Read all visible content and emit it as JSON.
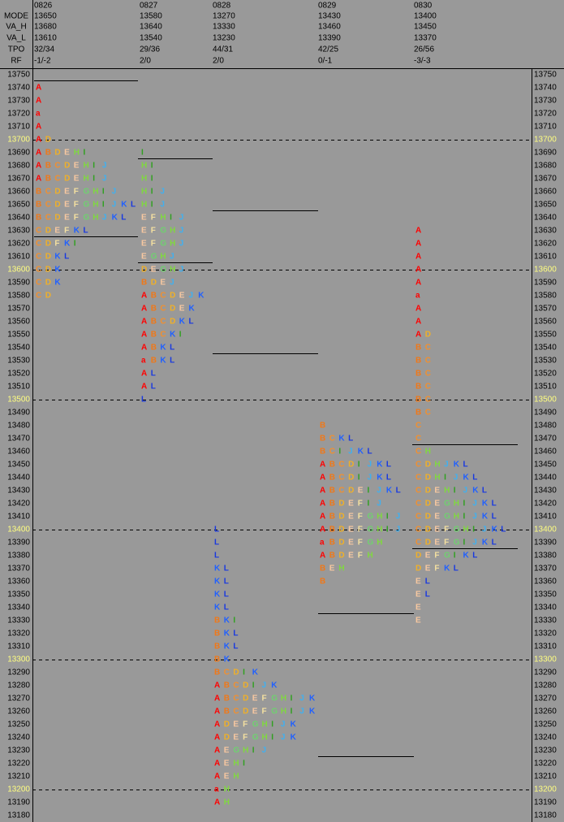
{
  "chart_data": {
    "type": "market-profile",
    "row_labels": [
      "MODE",
      "VA_H",
      "VA_L",
      "TPO",
      "RF"
    ],
    "prices": [
      13750,
      13740,
      13730,
      13720,
      13710,
      13700,
      13690,
      13680,
      13670,
      13660,
      13650,
      13640,
      13630,
      13620,
      13610,
      13600,
      13590,
      13580,
      13570,
      13560,
      13550,
      13540,
      13530,
      13520,
      13510,
      13500,
      13490,
      13480,
      13470,
      13460,
      13450,
      13440,
      13430,
      13420,
      13410,
      13400,
      13390,
      13380,
      13370,
      13360,
      13350,
      13340,
      13330,
      13320,
      13310,
      13300,
      13290,
      13280,
      13270,
      13260,
      13250,
      13240,
      13230,
      13220,
      13210,
      13200,
      13190,
      13180
    ],
    "grid_prices": [
      13700,
      13600,
      13500,
      13400,
      13300,
      13200
    ],
    "letter_colors": {
      "A": "#ff0000",
      "a": "#ff0000",
      "B": "#f07818",
      "C": "#f09030",
      "D": "#f0b028",
      "E": "#f8c8a0",
      "F": "#f4e0a0",
      "G": "#70d070",
      "H": "#80d840",
      "I": "#30a020",
      "J": "#40b0f0",
      "K": "#2060ff",
      "L": "#1838e0"
    },
    "sessions": [
      {
        "date": "0826",
        "values": [
          13650,
          13680,
          13610,
          "32/34",
          "-1/-2"
        ],
        "profile": [
          {
            "price": 13740,
            "letters": [
              "A"
            ]
          },
          {
            "price": 13730,
            "letters": [
              "A"
            ]
          },
          {
            "price": 13720,
            "letters": [
              "a"
            ]
          },
          {
            "price": 13710,
            "letters": [
              "A"
            ]
          },
          {
            "price": 13700,
            "letters": [
              "A",
              "D"
            ]
          },
          {
            "price": 13690,
            "letters": [
              "A",
              "B",
              "D",
              "E",
              "H",
              "I"
            ]
          },
          {
            "price": 13680,
            "letters": [
              "A",
              "B",
              "C",
              "D",
              "E",
              "H",
              "I",
              "J"
            ]
          },
          {
            "price": 13670,
            "letters": [
              "A",
              "B",
              "C",
              "D",
              "E",
              "H",
              "I",
              "J"
            ]
          },
          {
            "price": 13660,
            "letters": [
              "B",
              "C",
              "D",
              "E",
              "F",
              "G",
              "H",
              "I",
              "J"
            ]
          },
          {
            "price": 13650,
            "letters": [
              "B",
              "C",
              "D",
              "E",
              "F",
              "G",
              "H",
              "I",
              "J",
              "K",
              "L"
            ]
          },
          {
            "price": 13640,
            "letters": [
              "B",
              "C",
              "D",
              "E",
              "F",
              "G",
              "H",
              "J",
              "K",
              "L"
            ]
          },
          {
            "price": 13630,
            "letters": [
              "C",
              "D",
              "E",
              "F",
              "K",
              "L"
            ]
          },
          {
            "price": 13620,
            "letters": [
              "C",
              "D",
              "F",
              "K",
              "I"
            ]
          },
          {
            "price": 13610,
            "letters": [
              "C",
              "D",
              "K",
              "L"
            ]
          },
          {
            "price": 13600,
            "letters": [
              "C",
              "D",
              "K"
            ]
          },
          {
            "price": 13590,
            "letters": [
              "C",
              "D",
              "K"
            ]
          },
          {
            "price": 13580,
            "letters": [
              "C",
              "D"
            ]
          }
        ]
      },
      {
        "date": "0827",
        "values": [
          13580,
          13640,
          13540,
          "29/36",
          "2/0"
        ],
        "profile": [
          {
            "price": 13690,
            "letters": [
              "I"
            ]
          },
          {
            "price": 13680,
            "letters": [
              "H",
              "I"
            ]
          },
          {
            "price": 13670,
            "letters": [
              "H",
              "I"
            ]
          },
          {
            "price": 13660,
            "letters": [
              "H",
              "I",
              "J"
            ]
          },
          {
            "price": 13650,
            "letters": [
              "H",
              "I",
              "J"
            ]
          },
          {
            "price": 13640,
            "letters": [
              "E",
              "F",
              "H",
              "I",
              "J"
            ]
          },
          {
            "price": 13630,
            "letters": [
              "E",
              "F",
              "G",
              "H",
              "J"
            ]
          },
          {
            "price": 13620,
            "letters": [
              "E",
              "F",
              "G",
              "H",
              "J"
            ]
          },
          {
            "price": 13610,
            "letters": [
              "E",
              "G",
              "H",
              "J"
            ]
          },
          {
            "price": 13600,
            "letters": [
              "D",
              "E",
              "G",
              "H",
              "J"
            ]
          },
          {
            "price": 13590,
            "letters": [
              "B",
              "D",
              "E",
              "J"
            ]
          },
          {
            "price": 13580,
            "letters": [
              "A",
              "B",
              "C",
              "D",
              "E",
              "J",
              "K"
            ]
          },
          {
            "price": 13570,
            "letters": [
              "A",
              "B",
              "C",
              "D",
              "E",
              "K"
            ]
          },
          {
            "price": 13560,
            "letters": [
              "A",
              "B",
              "C",
              "D",
              "K",
              "L"
            ]
          },
          {
            "price": 13550,
            "letters": [
              "A",
              "B",
              "C",
              "K",
              "I"
            ]
          },
          {
            "price": 13540,
            "letters": [
              "A",
              "B",
              "K",
              "L"
            ]
          },
          {
            "price": 13530,
            "letters": [
              "a",
              "B",
              "K",
              "L"
            ]
          },
          {
            "price": 13520,
            "letters": [
              "A",
              "L"
            ]
          },
          {
            "price": 13510,
            "letters": [
              "A",
              "L"
            ]
          },
          {
            "price": 13500,
            "letters": [
              "L"
            ]
          }
        ]
      },
      {
        "date": "0828",
        "values": [
          13270,
          13330,
          13230,
          "44/31",
          "2/0"
        ],
        "profile": [
          {
            "price": 13400,
            "letters": [
              "L"
            ]
          },
          {
            "price": 13390,
            "letters": [
              "L"
            ]
          },
          {
            "price": 13380,
            "letters": [
              "L"
            ]
          },
          {
            "price": 13370,
            "letters": [
              "K",
              "L"
            ]
          },
          {
            "price": 13360,
            "letters": [
              "K",
              "L"
            ]
          },
          {
            "price": 13350,
            "letters": [
              "K",
              "L"
            ]
          },
          {
            "price": 13340,
            "letters": [
              "K",
              "L"
            ]
          },
          {
            "price": 13330,
            "letters": [
              "B",
              "K",
              "I"
            ]
          },
          {
            "price": 13320,
            "letters": [
              "B",
              "K",
              "L"
            ]
          },
          {
            "price": 13310,
            "letters": [
              "B",
              "K",
              "L"
            ]
          },
          {
            "price": 13300,
            "letters": [
              "B",
              "K"
            ]
          },
          {
            "price": 13290,
            "letters": [
              "B",
              "C",
              "D",
              "I",
              "K"
            ]
          },
          {
            "price": 13280,
            "letters": [
              "A",
              "B",
              "C",
              "D",
              "I",
              "J",
              "K"
            ]
          },
          {
            "price": 13270,
            "letters": [
              "A",
              "B",
              "C",
              "D",
              "E",
              "F",
              "G",
              "H",
              "I",
              "J",
              "K"
            ]
          },
          {
            "price": 13260,
            "letters": [
              "A",
              "B",
              "C",
              "D",
              "E",
              "F",
              "G",
              "H",
              "I",
              "J",
              "K"
            ]
          },
          {
            "price": 13250,
            "letters": [
              "A",
              "D",
              "E",
              "F",
              "G",
              "H",
              "I",
              "J",
              "K"
            ]
          },
          {
            "price": 13240,
            "letters": [
              "A",
              "D",
              "E",
              "F",
              "G",
              "H",
              "I",
              "J",
              "K"
            ]
          },
          {
            "price": 13230,
            "letters": [
              "A",
              "E",
              "G",
              "H",
              "I",
              "J"
            ]
          },
          {
            "price": 13220,
            "letters": [
              "A",
              "E",
              "H",
              "I"
            ]
          },
          {
            "price": 13210,
            "letters": [
              "A",
              "E",
              "H"
            ]
          },
          {
            "price": 13200,
            "letters": [
              "a",
              "H"
            ]
          },
          {
            "price": 13190,
            "letters": [
              "A",
              "H"
            ]
          }
        ]
      },
      {
        "date": "0829",
        "values": [
          13430,
          13460,
          13390,
          "42/25",
          "0/-1"
        ],
        "profile": [
          {
            "price": 13480,
            "letters": [
              "B"
            ]
          },
          {
            "price": 13470,
            "letters": [
              "B",
              "C",
              "K",
              "L"
            ]
          },
          {
            "price": 13460,
            "letters": [
              "B",
              "C",
              "I",
              "J",
              "K",
              "L"
            ]
          },
          {
            "price": 13450,
            "letters": [
              "A",
              "B",
              "C",
              "D",
              "I",
              "J",
              "K",
              "L"
            ]
          },
          {
            "price": 13440,
            "letters": [
              "A",
              "B",
              "C",
              "D",
              "I",
              "J",
              "K",
              "L"
            ]
          },
          {
            "price": 13430,
            "letters": [
              "A",
              "B",
              "C",
              "D",
              "E",
              "I",
              "J",
              "K",
              "L"
            ]
          },
          {
            "price": 13420,
            "letters": [
              "A",
              "B",
              "D",
              "E",
              "F",
              "I",
              "J"
            ]
          },
          {
            "price": 13410,
            "letters": [
              "A",
              "B",
              "D",
              "E",
              "F",
              "G",
              "H",
              "I",
              "J"
            ]
          },
          {
            "price": 13400,
            "letters": [
              "A",
              "B",
              "D",
              "E",
              "F",
              "G",
              "H",
              "I",
              "J"
            ]
          },
          {
            "price": 13390,
            "letters": [
              "a",
              "B",
              "D",
              "E",
              "F",
              "G",
              "H"
            ]
          },
          {
            "price": 13380,
            "letters": [
              "A",
              "B",
              "D",
              "E",
              "F",
              "H"
            ]
          },
          {
            "price": 13370,
            "letters": [
              "B",
              "E",
              "H"
            ]
          },
          {
            "price": 13360,
            "letters": [
              "B"
            ]
          }
        ]
      },
      {
        "date": "0830",
        "values": [
          13400,
          13450,
          13370,
          "26/56",
          "-3/-3"
        ],
        "profile": [
          {
            "price": 13630,
            "letters": [
              "A"
            ]
          },
          {
            "price": 13620,
            "letters": [
              "A"
            ]
          },
          {
            "price": 13610,
            "letters": [
              "A"
            ]
          },
          {
            "price": 13600,
            "letters": [
              "A"
            ]
          },
          {
            "price": 13590,
            "letters": [
              "A"
            ]
          },
          {
            "price": 13580,
            "letters": [
              "a"
            ]
          },
          {
            "price": 13570,
            "letters": [
              "A"
            ]
          },
          {
            "price": 13560,
            "letters": [
              "A"
            ]
          },
          {
            "price": 13550,
            "letters": [
              "A",
              "D"
            ]
          },
          {
            "price": 13540,
            "letters": [
              "B",
              "C"
            ]
          },
          {
            "price": 13530,
            "letters": [
              "B",
              "C"
            ]
          },
          {
            "price": 13520,
            "letters": [
              "B",
              "C"
            ]
          },
          {
            "price": 13510,
            "letters": [
              "B",
              "C"
            ]
          },
          {
            "price": 13500,
            "letters": [
              "B",
              "C"
            ]
          },
          {
            "price": 13490,
            "letters": [
              "B",
              "C"
            ]
          },
          {
            "price": 13480,
            "letters": [
              "C"
            ]
          },
          {
            "price": 13470,
            "letters": [
              "C"
            ]
          },
          {
            "price": 13460,
            "letters": [
              "C",
              "H"
            ]
          },
          {
            "price": 13450,
            "letters": [
              "C",
              "D",
              "H",
              "J",
              "K",
              "L"
            ]
          },
          {
            "price": 13440,
            "letters": [
              "C",
              "D",
              "H",
              "I",
              "J",
              "K",
              "L"
            ]
          },
          {
            "price": 13430,
            "letters": [
              "C",
              "D",
              "E",
              "H",
              "I",
              "J",
              "K",
              "L"
            ]
          },
          {
            "price": 13420,
            "letters": [
              "C",
              "D",
              "E",
              "G",
              "H",
              "I",
              "J",
              "K",
              "L"
            ]
          },
          {
            "price": 13410,
            "letters": [
              "C",
              "D",
              "E",
              "G",
              "H",
              "I",
              "J",
              "K",
              "L"
            ]
          },
          {
            "price": 13400,
            "letters": [
              "C",
              "D",
              "E",
              "F",
              "G",
              "H",
              "I",
              "J",
              "K",
              "L"
            ]
          },
          {
            "price": 13390,
            "letters": [
              "C",
              "D",
              "E",
              "F",
              "G",
              "I",
              "J",
              "K",
              "L"
            ]
          },
          {
            "price": 13380,
            "letters": [
              "D",
              "E",
              "F",
              "G",
              "I",
              "K",
              "L"
            ]
          },
          {
            "price": 13370,
            "letters": [
              "D",
              "E",
              "F",
              "K",
              "L"
            ]
          },
          {
            "price": 13360,
            "letters": [
              "E",
              "L"
            ]
          },
          {
            "price": 13350,
            "letters": [
              "E",
              "L"
            ]
          },
          {
            "price": 13340,
            "letters": [
              "E"
            ]
          },
          {
            "price": 13330,
            "letters": [
              "E"
            ]
          }
        ]
      }
    ]
  }
}
